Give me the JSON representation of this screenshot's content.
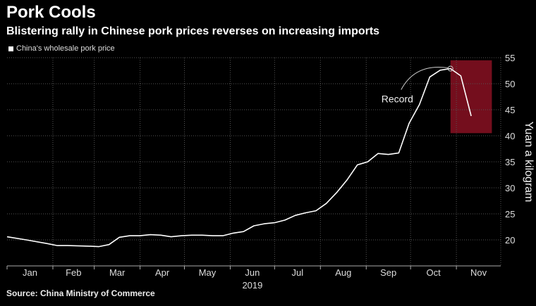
{
  "chart_data": {
    "type": "line",
    "title": "Pork Cools",
    "subtitle": "Blistering rally in Chinese pork prices reverses on increasing imports",
    "legend": {
      "position": "top-left",
      "entries": [
        "China's wholesale pork price"
      ]
    },
    "ylabel": "Yuan a kilogram",
    "xlabel": "2019",
    "ylim": [
      15,
      55
    ],
    "yticks": [
      20,
      25,
      30,
      35,
      40,
      45,
      50,
      55
    ],
    "grid": true,
    "x_tick_labels": [
      "Jan",
      "Feb",
      "Mar",
      "Apr",
      "May",
      "Jun",
      "Jul",
      "Aug",
      "Sep",
      "Oct",
      "Nov"
    ],
    "series": [
      {
        "name": "China's wholesale pork price",
        "color": "#ffffff",
        "x": [
          "2019-01-01",
          "2019-01-14",
          "2019-01-28",
          "2019-02-04",
          "2019-02-11",
          "2019-02-25",
          "2019-03-04",
          "2019-03-11",
          "2019-03-18",
          "2019-03-25",
          "2019-04-01",
          "2019-04-08",
          "2019-04-15",
          "2019-04-22",
          "2019-04-29",
          "2019-05-06",
          "2019-05-13",
          "2019-05-20",
          "2019-05-27",
          "2019-06-03",
          "2019-06-10",
          "2019-06-17",
          "2019-06-24",
          "2019-07-01",
          "2019-07-08",
          "2019-07-15",
          "2019-07-22",
          "2019-07-29",
          "2019-08-05",
          "2019-08-12",
          "2019-08-19",
          "2019-08-26",
          "2019-09-02",
          "2019-09-09",
          "2019-09-16",
          "2019-09-23",
          "2019-09-30",
          "2019-10-07",
          "2019-10-14",
          "2019-10-21",
          "2019-10-28",
          "2019-11-04",
          "2019-11-11"
        ],
        "values": [
          20.6,
          20.0,
          19.3,
          18.9,
          18.9,
          18.8,
          18.7,
          19.1,
          20.5,
          20.8,
          20.8,
          21.0,
          20.9,
          20.6,
          20.8,
          20.9,
          20.9,
          20.8,
          20.8,
          21.3,
          21.6,
          22.7,
          23.1,
          23.3,
          23.8,
          24.7,
          25.2,
          25.6,
          27.0,
          29.1,
          31.5,
          34.4,
          35.0,
          36.6,
          36.4,
          36.7,
          42.4,
          46.0,
          51.3,
          52.6,
          52.9,
          51.5,
          43.8
        ]
      }
    ],
    "annotations": [
      {
        "text": "Record",
        "date": "2019-10-28",
        "value": 52.9
      }
    ],
    "highlight": {
      "x_start": "2019-10-28",
      "x_end": "2019-11-25",
      "y_start": 40.5,
      "y_end": 54.5,
      "color": "#7a0f1f"
    }
  },
  "source": "Source: China Ministry of Commerce"
}
